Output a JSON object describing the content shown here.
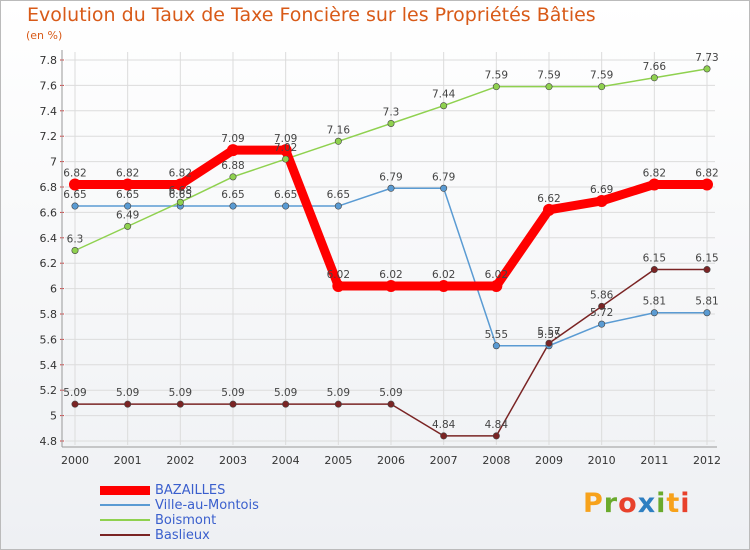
{
  "title": "Evolution du Taux de Taxe Foncière sur les Propriétés Bâties",
  "unit": "(en %)",
  "logo": {
    "letters": [
      "P",
      "r",
      "o",
      "x",
      "i",
      "t",
      "i"
    ],
    "colors": [
      "#f7a21b",
      "#6aaa2c",
      "#e8412b",
      "#2e7fc1",
      "#6aaa2c",
      "#f7a21b",
      "#e8412b"
    ]
  },
  "chart_data": {
    "type": "line",
    "title": "Evolution du Taux de Taxe Foncière sur les Propriétés Bâties",
    "ylabel": "(en %)",
    "xlabel": "",
    "ylim": [
      4.8,
      7.8
    ],
    "yticks": [
      "4.8",
      "5",
      "5.2",
      "5.4",
      "5.6",
      "5.8",
      "6",
      "6.2",
      "6.4",
      "6.6",
      "6.8",
      "7",
      "7.2",
      "7.4",
      "7.6",
      "7.8"
    ],
    "yticks_values": [
      4.8,
      5.0,
      5.2,
      5.4,
      5.6,
      5.8,
      6.0,
      6.2,
      6.4,
      6.6,
      6.8,
      7.0,
      7.2,
      7.4,
      7.6,
      7.8
    ],
    "x": [
      "2000",
      "2001",
      "2002",
      "2003",
      "2004",
      "2005",
      "2006",
      "2007",
      "2008",
      "2009",
      "2010",
      "2011",
      "2012"
    ],
    "grid": true,
    "series": [
      {
        "name": "Ville-au-Montois",
        "color": "#5a9bd3",
        "width": 1.5,
        "values": [
          6.65,
          6.65,
          6.65,
          6.65,
          6.65,
          6.65,
          6.79,
          6.79,
          5.55,
          5.55,
          5.72,
          5.81,
          5.81
        ],
        "labels": [
          "6.65",
          "6.65",
          "6.65",
          "6.65",
          "6.65",
          "6.65",
          "6.79",
          "6.79",
          "5.55",
          "5.55",
          "5.72",
          "5.81",
          "5.81"
        ]
      },
      {
        "name": "Boismont",
        "color": "#8fd14f",
        "width": 1.5,
        "values": [
          6.3,
          6.49,
          6.68,
          6.88,
          7.02,
          7.16,
          7.3,
          7.44,
          7.59,
          7.59,
          7.59,
          7.66,
          7.73
        ],
        "labels": [
          "6.3",
          "6.49",
          "6.68",
          "6.88",
          "7.02",
          "7.16",
          "7.3",
          "7.44",
          "7.59",
          "7.59",
          "7.59",
          "7.66",
          "7.73"
        ]
      },
      {
        "name": "Baslieux",
        "color": "#7a2424",
        "width": 1.5,
        "values": [
          5.09,
          5.09,
          5.09,
          5.09,
          5.09,
          5.09,
          5.09,
          4.84,
          4.84,
          5.57,
          5.86,
          6.15,
          6.15
        ],
        "labels": [
          "5.09",
          "5.09",
          "5.09",
          "5.09",
          "5.09",
          "5.09",
          "5.09",
          "4.84",
          "4.84",
          "5.57",
          "5.86",
          "6.15",
          "6.15"
        ]
      },
      {
        "name": "BAZAILLES",
        "color": "#ff0000",
        "width": 9,
        "values": [
          6.82,
          6.82,
          6.82,
          7.09,
          7.09,
          6.02,
          6.02,
          6.02,
          6.02,
          6.62,
          6.69,
          6.82,
          6.82
        ],
        "labels": [
          "6.82",
          "6.82",
          "6.82",
          "7.09",
          "7.09",
          "6.02",
          "6.02",
          "6.02",
          "6.02",
          "6.62",
          "6.69",
          "6.82",
          "6.82"
        ]
      }
    ],
    "legend": [
      {
        "name": "BAZAILLES",
        "color": "#ff0000",
        "width": 9
      },
      {
        "name": "Ville-au-Montois",
        "color": "#5a9bd3",
        "width": 2
      },
      {
        "name": "Boismont",
        "color": "#8fd14f",
        "width": 2
      },
      {
        "name": "Baslieux",
        "color": "#7a2424",
        "width": 2
      }
    ]
  }
}
